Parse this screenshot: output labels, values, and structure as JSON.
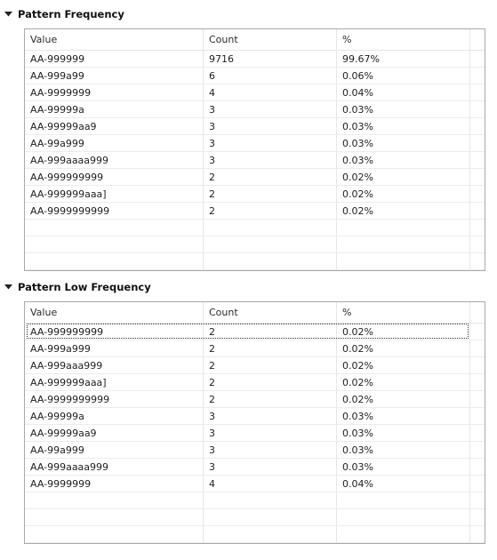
{
  "sections": [
    {
      "title": "Pattern Frequency",
      "columns": [
        "Value",
        "Count",
        "%"
      ],
      "rows": [
        [
          "AA-999999",
          "9716",
          "99.67%"
        ],
        [
          "AA-999a99",
          "6",
          "0.06%"
        ],
        [
          "AA-9999999",
          "4",
          "0.04%"
        ],
        [
          "AA-99999a",
          "3",
          "0.03%"
        ],
        [
          "AA-99999aa9",
          "3",
          "0.03%"
        ],
        [
          "AA-99a999",
          "3",
          "0.03%"
        ],
        [
          "AA-999aaaa999",
          "3",
          "0.03%"
        ],
        [
          "AA-999999999",
          "2",
          "0.02%"
        ],
        [
          "AA-999999aaa]",
          "2",
          "0.02%"
        ],
        [
          "AA-9999999999",
          "2",
          "0.02%"
        ]
      ]
    },
    {
      "title": "Pattern Low Frequency",
      "columns": [
        "Value",
        "Count",
        "%"
      ],
      "rows": [
        [
          "AA-999999999",
          "2",
          "0.02%"
        ],
        [
          "AA-999a999",
          "2",
          "0.02%"
        ],
        [
          "AA-999aaa999",
          "2",
          "0.02%"
        ],
        [
          "AA-999999aaa]",
          "2",
          "0.02%"
        ],
        [
          "AA-9999999999",
          "2",
          "0.02%"
        ],
        [
          "AA-99999a",
          "3",
          "0.03%"
        ],
        [
          "AA-99999aa9",
          "3",
          "0.03%"
        ],
        [
          "AA-99a999",
          "3",
          "0.03%"
        ],
        [
          "AA-999aaaa999",
          "3",
          "0.03%"
        ],
        [
          "AA-9999999",
          "4",
          "0.04%"
        ]
      ]
    }
  ]
}
